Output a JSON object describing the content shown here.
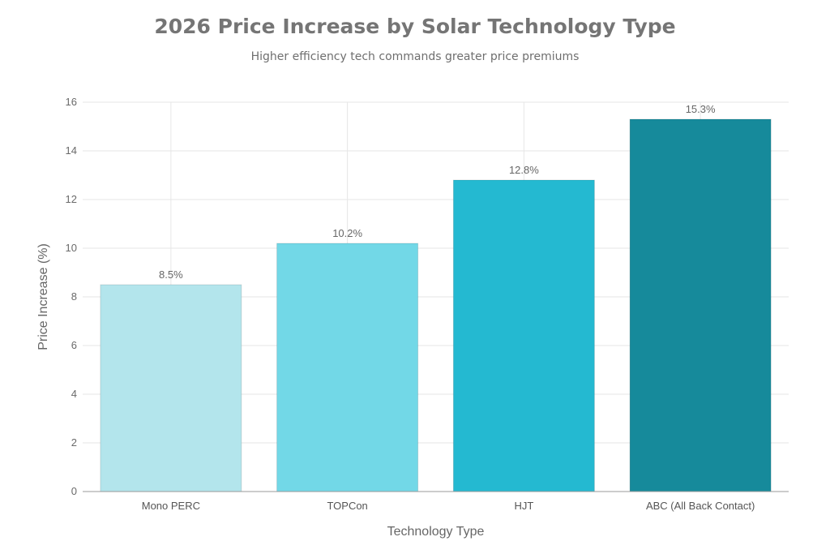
{
  "chart_data": {
    "type": "bar",
    "title": "2026 Price Increase by Solar Technology Type",
    "subtitle": "Higher efficiency tech commands greater price premiums",
    "xlabel": "Technology Type",
    "ylabel": "Price Increase (%)",
    "categories": [
      "Mono PERC",
      "TOPCon",
      "HJT",
      "ABC (All Back Contact)"
    ],
    "values": [
      8.5,
      10.2,
      12.8,
      15.3
    ],
    "value_labels": [
      "8.5%",
      "10.2%",
      "12.8%",
      "15.3%"
    ],
    "colors": [
      "#b3e5ec",
      "#72d8e7",
      "#24b9d1",
      "#168a9b"
    ],
    "ylim": [
      0,
      16
    ],
    "yticks": [
      0,
      2,
      4,
      6,
      8,
      10,
      12,
      14,
      16
    ],
    "ytick_labels": [
      "0",
      "2",
      "4",
      "6",
      "8",
      "10",
      "12",
      "14",
      "16"
    ],
    "grid": true
  }
}
